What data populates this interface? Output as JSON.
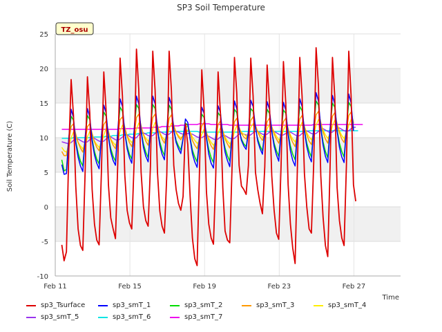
{
  "chart_data": {
    "type": "line",
    "title": "SP3 Soil Temperature",
    "xlabel": "Time",
    "ylabel": "Soil Temperature (C)",
    "badge": "TZ_osu",
    "xlim": [
      11,
      29.5
    ],
    "ylim": [
      -10,
      25
    ],
    "x_ticks": [
      {
        "value": 11,
        "label": "Feb 11"
      },
      {
        "value": 15,
        "label": "Feb 15"
      },
      {
        "value": 19,
        "label": "Feb 19"
      },
      {
        "value": 23,
        "label": "Feb 23"
      },
      {
        "value": 27,
        "label": "Feb 27"
      }
    ],
    "y_ticks": [
      -10,
      -5,
      0,
      5,
      10,
      15,
      20,
      25
    ],
    "grid": true,
    "x_start_day": 11.35,
    "samples_per_day": 8,
    "sample_hours": [
      0,
      3,
      6,
      9,
      12,
      15,
      18,
      21
    ],
    "series": [
      {
        "name": "sp3_Tsurface",
        "color": "#dd0000",
        "values": [
          -5.5,
          -7.8,
          -6.5,
          8,
          18.4,
          13.2,
          3,
          -3.2,
          -5.6,
          -6.3,
          4.8,
          18.8,
          13.6,
          2.5,
          -2.5,
          -4.8,
          -5.5,
          5.2,
          19.5,
          14,
          3.2,
          -1.6,
          -3.2,
          -4.6,
          6.2,
          21.5,
          16,
          4.6,
          -0.5,
          -2.3,
          -3.2,
          6.5,
          22.8,
          17,
          5,
          0,
          -2,
          -2.8,
          5.8,
          22.5,
          16.8,
          5,
          -0.6,
          -2.8,
          -3.8,
          4.6,
          22.5,
          16.8,
          6,
          2.5,
          0.5,
          -0.5,
          1.5,
          12,
          9,
          1.5,
          -4.5,
          -7.5,
          -8.5,
          5,
          19.8,
          14,
          2.2,
          -2.5,
          -4.5,
          -5.4,
          4.5,
          19.5,
          13.5,
          2.8,
          -3.5,
          -4.8,
          -5.2,
          6,
          21.6,
          16.5,
          6,
          3,
          2.5,
          1.8,
          6,
          21.5,
          16,
          5,
          2.5,
          0.5,
          -1,
          5.8,
          20.5,
          15,
          4.5,
          -0.5,
          -3.8,
          -4.7,
          6,
          21,
          15,
          3.2,
          -2.5,
          -6,
          -8.2,
          6,
          21.6,
          16,
          4.8,
          0,
          -3.2,
          -3.8,
          6.5,
          23,
          17.5,
          4.5,
          -1.5,
          -5.6,
          -7.2,
          6,
          21.6,
          16,
          2.8,
          -2,
          -4.5,
          -5.6,
          6,
          22.5,
          16,
          3.2,
          0.8
        ]
      },
      {
        "name": "sp3_smT_1",
        "color": "#0000ff",
        "values": [
          6.1,
          4.7,
          4.8,
          9.9,
          14.1,
          12.9,
          9.2,
          7.2,
          5.9,
          5.1,
          9.9,
          14.2,
          13,
          9.5,
          7.5,
          6.3,
          5.5,
          10.2,
          14.7,
          13.6,
          10,
          7.9,
          6.7,
          6,
          10.9,
          15.6,
          14.5,
          10.7,
          8.4,
          7.1,
          6.3,
          11.1,
          16,
          14.9,
          10.9,
          8.6,
          7.3,
          6.5,
          11.1,
          16,
          14.9,
          11.1,
          8.9,
          7.6,
          6.8,
          11,
          15.8,
          14.8,
          11.1,
          9.3,
          8.4,
          7.7,
          9.8,
          12.7,
          12.2,
          9.8,
          7.7,
          6.5,
          5.7,
          9.9,
          14.4,
          13.5,
          9.9,
          7.6,
          6.3,
          5.6,
          10,
          14.6,
          13.6,
          10.1,
          7.9,
          6.7,
          5.8,
          10.4,
          15.3,
          14.2,
          11.2,
          9.6,
          8.8,
          8.3,
          10.9,
          15.4,
          14.5,
          11.5,
          9.5,
          8.4,
          7.6,
          10.9,
          15.2,
          14.1,
          10.9,
          8.8,
          7.5,
          6.6,
          10.6,
          15.1,
          14,
          10.4,
          8.1,
          6.7,
          5.9,
          10.9,
          15.6,
          14.5,
          10.9,
          8.7,
          7.3,
          6.5,
          11.6,
          16.5,
          15.3,
          11.3,
          8.9,
          7.3,
          6.4,
          11.3,
          16.1,
          14.9,
          10.9,
          8.6,
          7.2,
          6.4,
          11.3,
          16.3,
          15,
          11
        ]
      },
      {
        "name": "sp3_smT_2",
        "color": "#00dd00",
        "values": [
          6.8,
          5.2,
          5.4,
          9.8,
          13.1,
          12.5,
          9.5,
          7.8,
          6.6,
          5.9,
          9.9,
          13.2,
          12.6,
          9.8,
          8,
          6.9,
          6.2,
          10.2,
          13.7,
          13.1,
          10.2,
          8.4,
          7.3,
          6.6,
          10.7,
          14.4,
          13.8,
          10.8,
          8.8,
          7.6,
          6.9,
          10.9,
          14.8,
          14.2,
          11,
          9.1,
          7.9,
          7.1,
          11,
          14.8,
          14.2,
          11.2,
          9.4,
          8.2,
          7.4,
          10.9,
          14.7,
          14.1,
          11.2,
          9.6,
          8.8,
          8.2,
          9.9,
          12.1,
          11.8,
          9.9,
          8.2,
          7.2,
          6.5,
          10,
          13.4,
          12.9,
          10.1,
          8.3,
          7.1,
          6.4,
          10.1,
          13.6,
          13.1,
          10.3,
          8.5,
          7.4,
          6.6,
          10.4,
          14.1,
          13.6,
          11.2,
          9.8,
          9.1,
          8.7,
          10.8,
          14.2,
          13.8,
          11.3,
          9.8,
          8.8,
          8.1,
          10.8,
          14.1,
          13.5,
          11,
          9.2,
          8.1,
          7.3,
          10.6,
          14,
          13.5,
          10.7,
          8.8,
          7.6,
          6.8,
          10.9,
          14.5,
          13.9,
          11.1,
          9.2,
          8,
          7.2,
          11.5,
          15.3,
          14.7,
          11.5,
          9.4,
          8,
          7.1,
          11.3,
          15,
          14.4,
          11.2,
          9.2,
          8,
          7.2,
          11.2,
          15.1,
          14.5,
          11.2
        ]
      },
      {
        "name": "sp3_smT_3",
        "color": "#ff9900",
        "values": [
          8,
          7.4,
          7.4,
          9.5,
          11.6,
          12,
          10.5,
          9.3,
          8.5,
          7.9,
          9.5,
          11.6,
          12,
          10.6,
          9.4,
          8.6,
          8.1,
          9.8,
          11.9,
          12.4,
          10.9,
          9.7,
          8.9,
          8.4,
          10.3,
          12.6,
          13,
          11.5,
          10.2,
          9.3,
          8.7,
          10.4,
          12.9,
          13.4,
          11.7,
          10.4,
          9.5,
          8.9,
          10.5,
          12.9,
          13.4,
          11.8,
          10.6,
          9.8,
          9.2,
          10.6,
          12.8,
          13.3,
          11.8,
          10.7,
          10.1,
          9.7,
          10.4,
          11.4,
          11.7,
          10.7,
          9.6,
          8.9,
          8.4,
          9.9,
          11.7,
          12.2,
          10.8,
          9.6,
          8.8,
          8.3,
          9.9,
          11.9,
          12.4,
          11,
          9.8,
          9.1,
          8.5,
          10.1,
          12.3,
          12.8,
          11.5,
          10.6,
          10.1,
          9.8,
          10.8,
          12.5,
          13,
          11.8,
          10.8,
          10.1,
          9.6,
          10.6,
          12.3,
          12.8,
          11.6,
          10.5,
          9.8,
          9.2,
          10.4,
          12.3,
          12.8,
          11.3,
          10.1,
          9.3,
          8.7,
          10.6,
          12.7,
          13.2,
          11.6,
          10.4,
          9.5,
          9,
          11.1,
          13.3,
          13.8,
          12.2,
          10.8,
          9.8,
          9.2,
          11,
          13.1,
          13.6,
          12,
          10.7,
          9.8,
          9.3,
          11.1,
          13.2,
          13.7,
          12.1
        ]
      },
      {
        "name": "sp3_smT_4",
        "color": "#ffee00",
        "values": [
          8.6,
          8.1,
          7.9,
          8.6,
          10,
          10.8,
          10.2,
          9.3,
          8.8,
          8.4,
          8.8,
          10.1,
          10.9,
          10.3,
          9.5,
          9,
          8.6,
          9,
          10.4,
          11.3,
          10.7,
          9.8,
          9.3,
          8.9,
          9.5,
          10.9,
          11.8,
          11.2,
          10.3,
          9.7,
          9.3,
          9.7,
          11.2,
          12.1,
          11.5,
          10.5,
          9.9,
          9.5,
          9.9,
          11.3,
          12.2,
          11.6,
          10.7,
          10.1,
          9.7,
          10,
          11.3,
          12.1,
          11.6,
          10.8,
          10.3,
          10,
          10.1,
          10.7,
          11.1,
          10.8,
          10.1,
          9.6,
          9.2,
          9.4,
          10.5,
          11.2,
          10.7,
          9.9,
          9.3,
          8.9,
          9.4,
          10.7,
          11.4,
          10.9,
          10.1,
          9.5,
          9.1,
          9.6,
          10.9,
          11.7,
          11.3,
          10.8,
          10.5,
          10.2,
          10.6,
          11.5,
          12,
          11.5,
          10.9,
          10.5,
          10.1,
          10.3,
          11.3,
          11.9,
          11.5,
          10.8,
          10.2,
          9.7,
          9.9,
          11.1,
          11.8,
          11.2,
          10.4,
          9.8,
          9.4,
          10.1,
          11.4,
          12.2,
          11.6,
          10.7,
          10.1,
          9.7,
          10.5,
          11.8,
          12.6,
          12,
          11.1,
          10.4,
          9.9,
          10.5,
          11.7,
          12.5,
          11.9,
          11,
          10.3,
          9.9,
          10.6,
          11.8,
          12.6,
          12
        ]
      },
      {
        "name": "sp3_smT_5",
        "color": "#9933ee",
        "values": [
          9.4,
          9.3,
          9.2,
          9.1,
          9.3,
          9.6,
          9.8,
          9.8,
          9.6,
          9.4,
          9.3,
          9.4,
          9.7,
          9.9,
          9.9,
          9.7,
          9.5,
          9.4,
          9.5,
          9.8,
          10.1,
          10.1,
          9.9,
          9.7,
          9.6,
          9.8,
          10.1,
          10.4,
          10.4,
          10.2,
          10,
          9.9,
          10,
          10.4,
          10.7,
          10.7,
          10.5,
          10.3,
          10.2,
          10.3,
          10.6,
          10.9,
          10.9,
          10.7,
          10.5,
          10.4,
          10.5,
          10.8,
          11,
          10.9,
          10.8,
          10.6,
          10.5,
          10.5,
          10.6,
          10.6,
          10.5,
          10.3,
          10.1,
          10,
          10,
          10.2,
          10.3,
          10.2,
          10,
          9.8,
          9.7,
          9.8,
          10.1,
          10.3,
          10.3,
          10.1,
          9.9,
          9.8,
          9.9,
          10.2,
          10.5,
          10.6,
          10.5,
          10.4,
          10.3,
          10.4,
          10.7,
          10.9,
          10.9,
          10.7,
          10.5,
          10.4,
          10.5,
          10.8,
          11,
          10.9,
          10.7,
          10.5,
          10.3,
          10.4,
          10.6,
          10.8,
          10.8,
          10.6,
          10.4,
          10.2,
          10.3,
          10.6,
          10.9,
          11,
          10.8,
          10.6,
          10.5,
          10.6,
          10.9,
          11.2,
          11.3,
          11.1,
          10.9,
          10.7,
          10.8,
          11.1,
          11.4,
          11.4,
          11.2,
          11,
          10.9,
          11,
          11.3,
          11.5,
          11.5
        ]
      },
      {
        "name": "sp3_smT_6",
        "color": "#00e5e5",
        "values": [
          9.9,
          9.9,
          9.9,
          9.9,
          9.9,
          10,
          10,
          10,
          10,
          10,
          10,
          10,
          10,
          10,
          10.1,
          10.1,
          10.1,
          10.1,
          10.1,
          10.2,
          10.2,
          10.2,
          10.3,
          10.3,
          10.3,
          10.3,
          10.4,
          10.4,
          10.4,
          10.5,
          10.5,
          10.5,
          10.5,
          10.6,
          10.6,
          10.6,
          10.6,
          10.7,
          10.7,
          10.7,
          10.7,
          10.8,
          10.8,
          10.8,
          10.8,
          10.8,
          10.9,
          10.9,
          10.9,
          10.9,
          10.9,
          10.9,
          10.9,
          10.9,
          10.9,
          10.9,
          10.9,
          10.9,
          10.9,
          10.8,
          10.8,
          10.8,
          10.8,
          10.8,
          10.8,
          10.8,
          10.8,
          10.8,
          10.8,
          10.8,
          10.8,
          10.8,
          10.8,
          10.8,
          10.8,
          10.8,
          10.8,
          10.9,
          10.9,
          10.9,
          10.9,
          10.9,
          10.9,
          10.9,
          10.9,
          10.9,
          10.9,
          10.9,
          10.9,
          10.9,
          10.9,
          10.9,
          10.9,
          10.9,
          10.9,
          10.9,
          10.9,
          10.9,
          10.9,
          10.9,
          10.9,
          10.9,
          10.9,
          10.9,
          10.9,
          10.9,
          11,
          11,
          11,
          11,
          11,
          11,
          11,
          11,
          11,
          11,
          11,
          11,
          11,
          11,
          11,
          11,
          11,
          11,
          11,
          11,
          11,
          11
        ]
      },
      {
        "name": "sp3_smT_7",
        "color": "#ee00ee",
        "values": [
          11.2,
          11.2,
          11.2,
          11.2,
          11.2,
          11.2,
          11.2,
          11.2,
          11.2,
          11.2,
          11.2,
          11.2,
          11.2,
          11.2,
          11.2,
          11.2,
          11.2,
          11.2,
          11.2,
          11.2,
          11.2,
          11.2,
          11.2,
          11.2,
          11.2,
          11.3,
          11.3,
          11.3,
          11.3,
          11.3,
          11.3,
          11.3,
          11.4,
          11.4,
          11.4,
          11.4,
          11.4,
          11.4,
          11.4,
          11.5,
          11.5,
          11.5,
          11.5,
          11.6,
          11.6,
          11.6,
          11.6,
          11.7,
          11.7,
          11.7,
          11.7,
          11.8,
          11.8,
          11.8,
          11.9,
          11.9,
          11.9,
          11.9,
          11.9,
          12,
          12,
          12,
          12,
          12,
          11.9,
          11.9,
          11.9,
          11.9,
          11.9,
          11.9,
          11.9,
          11.9,
          11.8,
          11.8,
          11.8,
          11.8,
          11.8,
          11.8,
          11.8,
          11.8,
          11.8,
          11.8,
          11.8,
          11.8,
          11.8,
          11.8,
          11.8,
          11.8,
          11.8,
          11.8,
          11.8,
          11.8,
          11.8,
          11.8,
          11.8,
          11.8,
          11.8,
          11.8,
          11.8,
          11.8,
          11.8,
          11.8,
          11.8,
          11.8,
          11.8,
          11.8,
          11.8,
          11.8,
          11.9,
          11.9,
          11.9,
          11.9,
          11.9,
          11.9,
          11.9,
          11.9,
          11.9,
          11.9,
          11.9,
          11.9,
          11.9,
          11.9,
          11.9,
          11.9,
          11.9,
          11.9,
          11.9,
          11.9,
          11.9,
          11.9
        ]
      }
    ]
  }
}
